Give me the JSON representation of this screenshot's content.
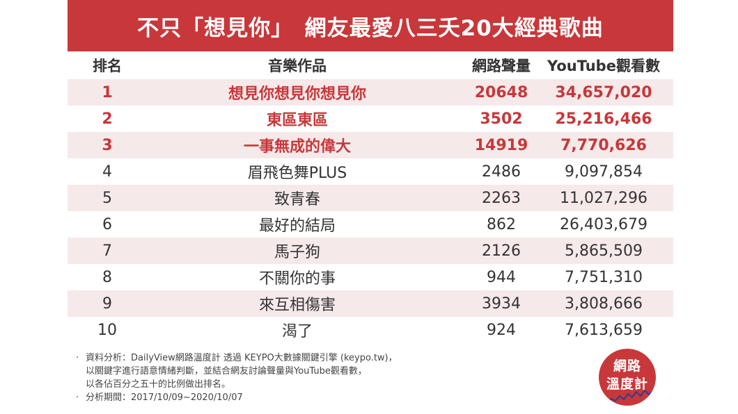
{
  "title": "不只「想見你」　網友最愛八三夭20大經典歌曲",
  "table": {
    "headers": {
      "rank": "排名",
      "title": "音樂作品",
      "volume": "網路聲量",
      "views": "YouTube觀看數"
    },
    "rows": [
      {
        "rank": "1",
        "title": "想見你想見你想見你",
        "volume": "20648",
        "views": "34,657,020",
        "highlight": true
      },
      {
        "rank": "2",
        "title": "東區東區",
        "volume": "3502",
        "views": "25,216,466",
        "highlight": true
      },
      {
        "rank": "3",
        "title": "一事無成的偉大",
        "volume": "14919",
        "views": "7,770,626",
        "highlight": true
      },
      {
        "rank": "4",
        "title": "眉飛色舞PLUS",
        "volume": "2486",
        "views": "9,097,854",
        "highlight": false
      },
      {
        "rank": "5",
        "title": "致青春",
        "volume": "2263",
        "views": "11,027,296",
        "highlight": false
      },
      {
        "rank": "6",
        "title": "最好的結局",
        "volume": "862",
        "views": "26,403,679",
        "highlight": false
      },
      {
        "rank": "7",
        "title": "馬子狗",
        "volume": "2126",
        "views": "5,865,509",
        "highlight": false
      },
      {
        "rank": "8",
        "title": "不關你的事",
        "volume": "944",
        "views": "7,751,310",
        "highlight": false
      },
      {
        "rank": "9",
        "title": "來互相傷害",
        "volume": "3934",
        "views": "3,808,666",
        "highlight": false
      },
      {
        "rank": "10",
        "title": "渴了",
        "volume": "924",
        "views": "7,613,659",
        "highlight": false
      }
    ]
  },
  "footnote": {
    "bullet": "·",
    "lines": [
      "資料分析：DailyView網路溫度計 透過 KEYPO大數據關鍵引擎 (keypo.tw)，",
      "以關鍵字進行語意情緒判斷，並結合網友討論聲量與YouTube觀看數，",
      "以各佔百分之五十的比例做出排名。",
      "分析期間：2017/10/09~2020/10/07"
    ]
  },
  "logo": {
    "line1": "網路",
    "line2": "溫度計"
  },
  "colors": {
    "brand_red": "#c8373a",
    "row_stripe": "#f6e9ea",
    "text": "#333333"
  }
}
